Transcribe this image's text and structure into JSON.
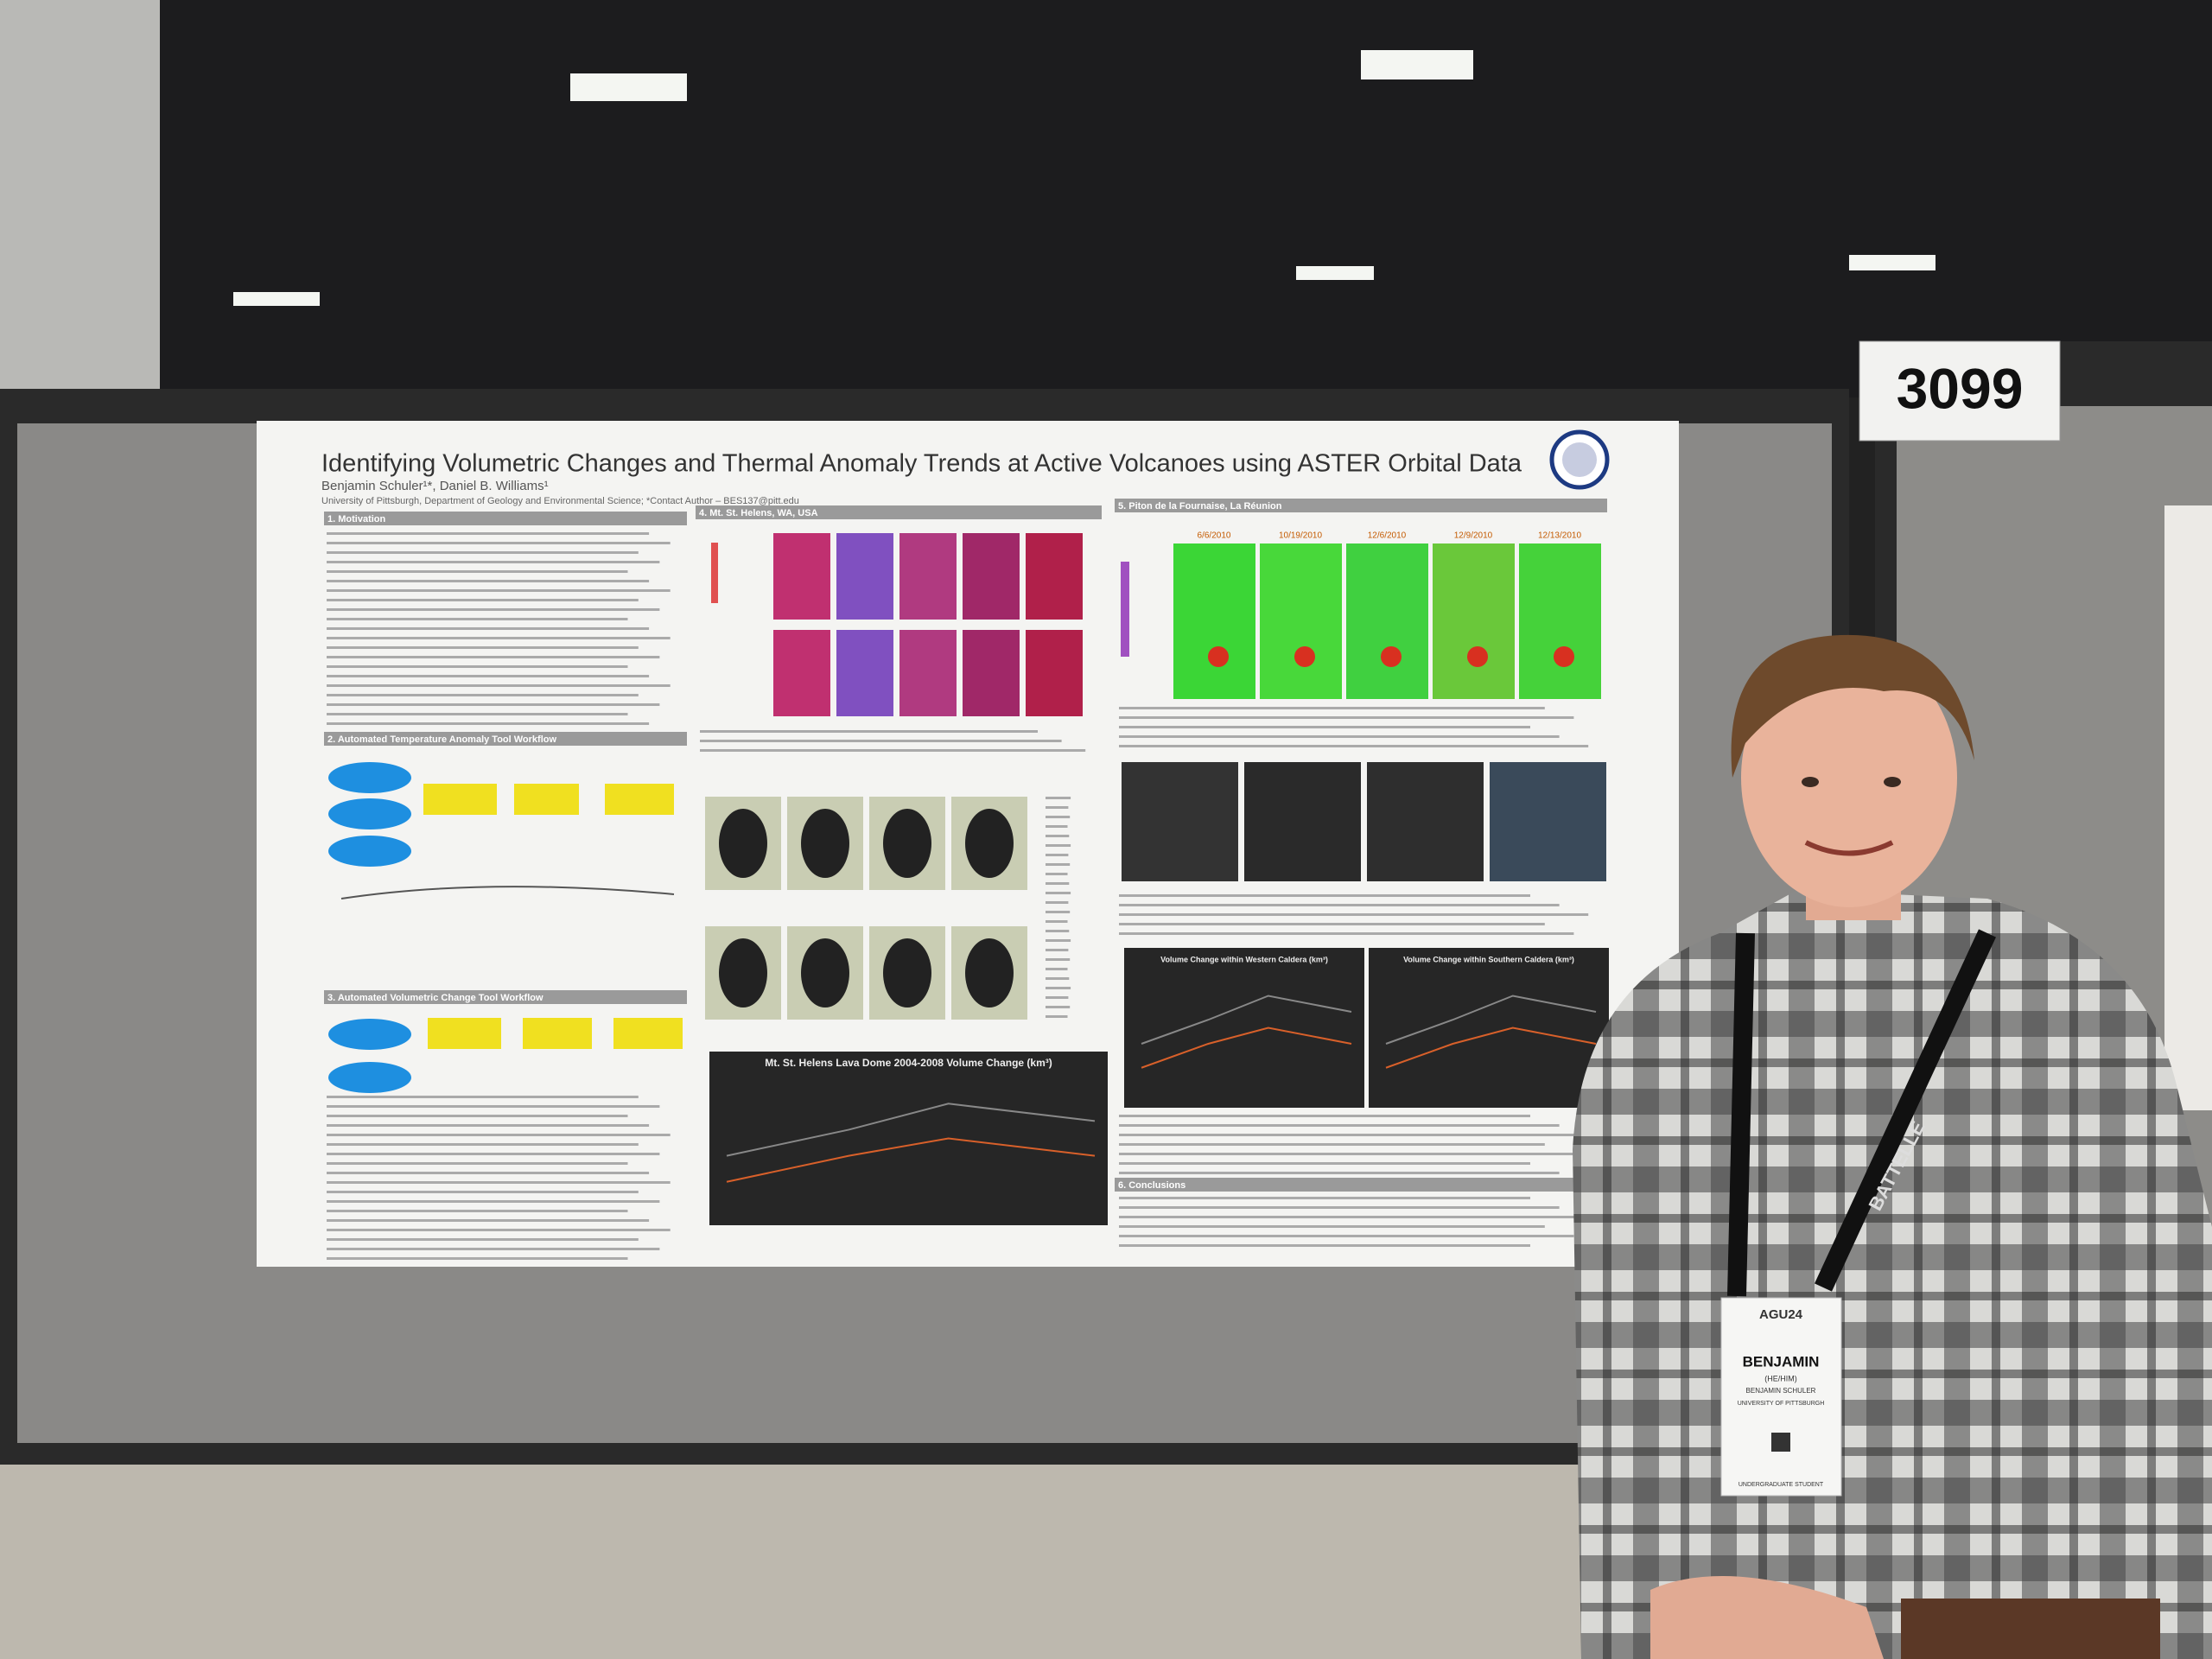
{
  "poster": {
    "title": "Identifying Volumetric Changes and Thermal Anomaly Trends at Active Volcanoes using ASTER Orbital Data",
    "authors": "Benjamin Schuler¹*, Daniel B. Williams¹",
    "affiliation": "University of Pittsburgh, Department of Geology and Environmental Science; *Contact Author – BES137@pitt.edu",
    "sections": [
      "1. Motivation",
      "2. Automated Temperature Anomaly Tool Workflow",
      "3. Automated Volumetric Change Tool Workflow",
      "4. Mt. St. Helens, WA, USA",
      "5. Piton de la Fournaise, La Réunion",
      "6. Conclusions"
    ],
    "thermal_dates": [
      "6/6/2010",
      "10/19/2010",
      "12/6/2010",
      "12/9/2010",
      "12/13/2010"
    ],
    "chart_titles": [
      "Mt. St. Helens Lava Dome 2004-2008 Volume Change (km³)",
      "Volume Change within Western Caldera (km³)",
      "Volume Change within Southern Caldera (km³)"
    ]
  },
  "booth_number": "3099",
  "badge": {
    "event": "AGU24",
    "first_name": "BENJAMIN",
    "pronouns": "(HE/HIM)",
    "full_name": "BENJAMIN SCHULER",
    "organization": "UNIVERSITY OF PITTSBURGH",
    "role": "UNDERGRADUATE STUDENT"
  },
  "lanyard": "BATTELLE"
}
